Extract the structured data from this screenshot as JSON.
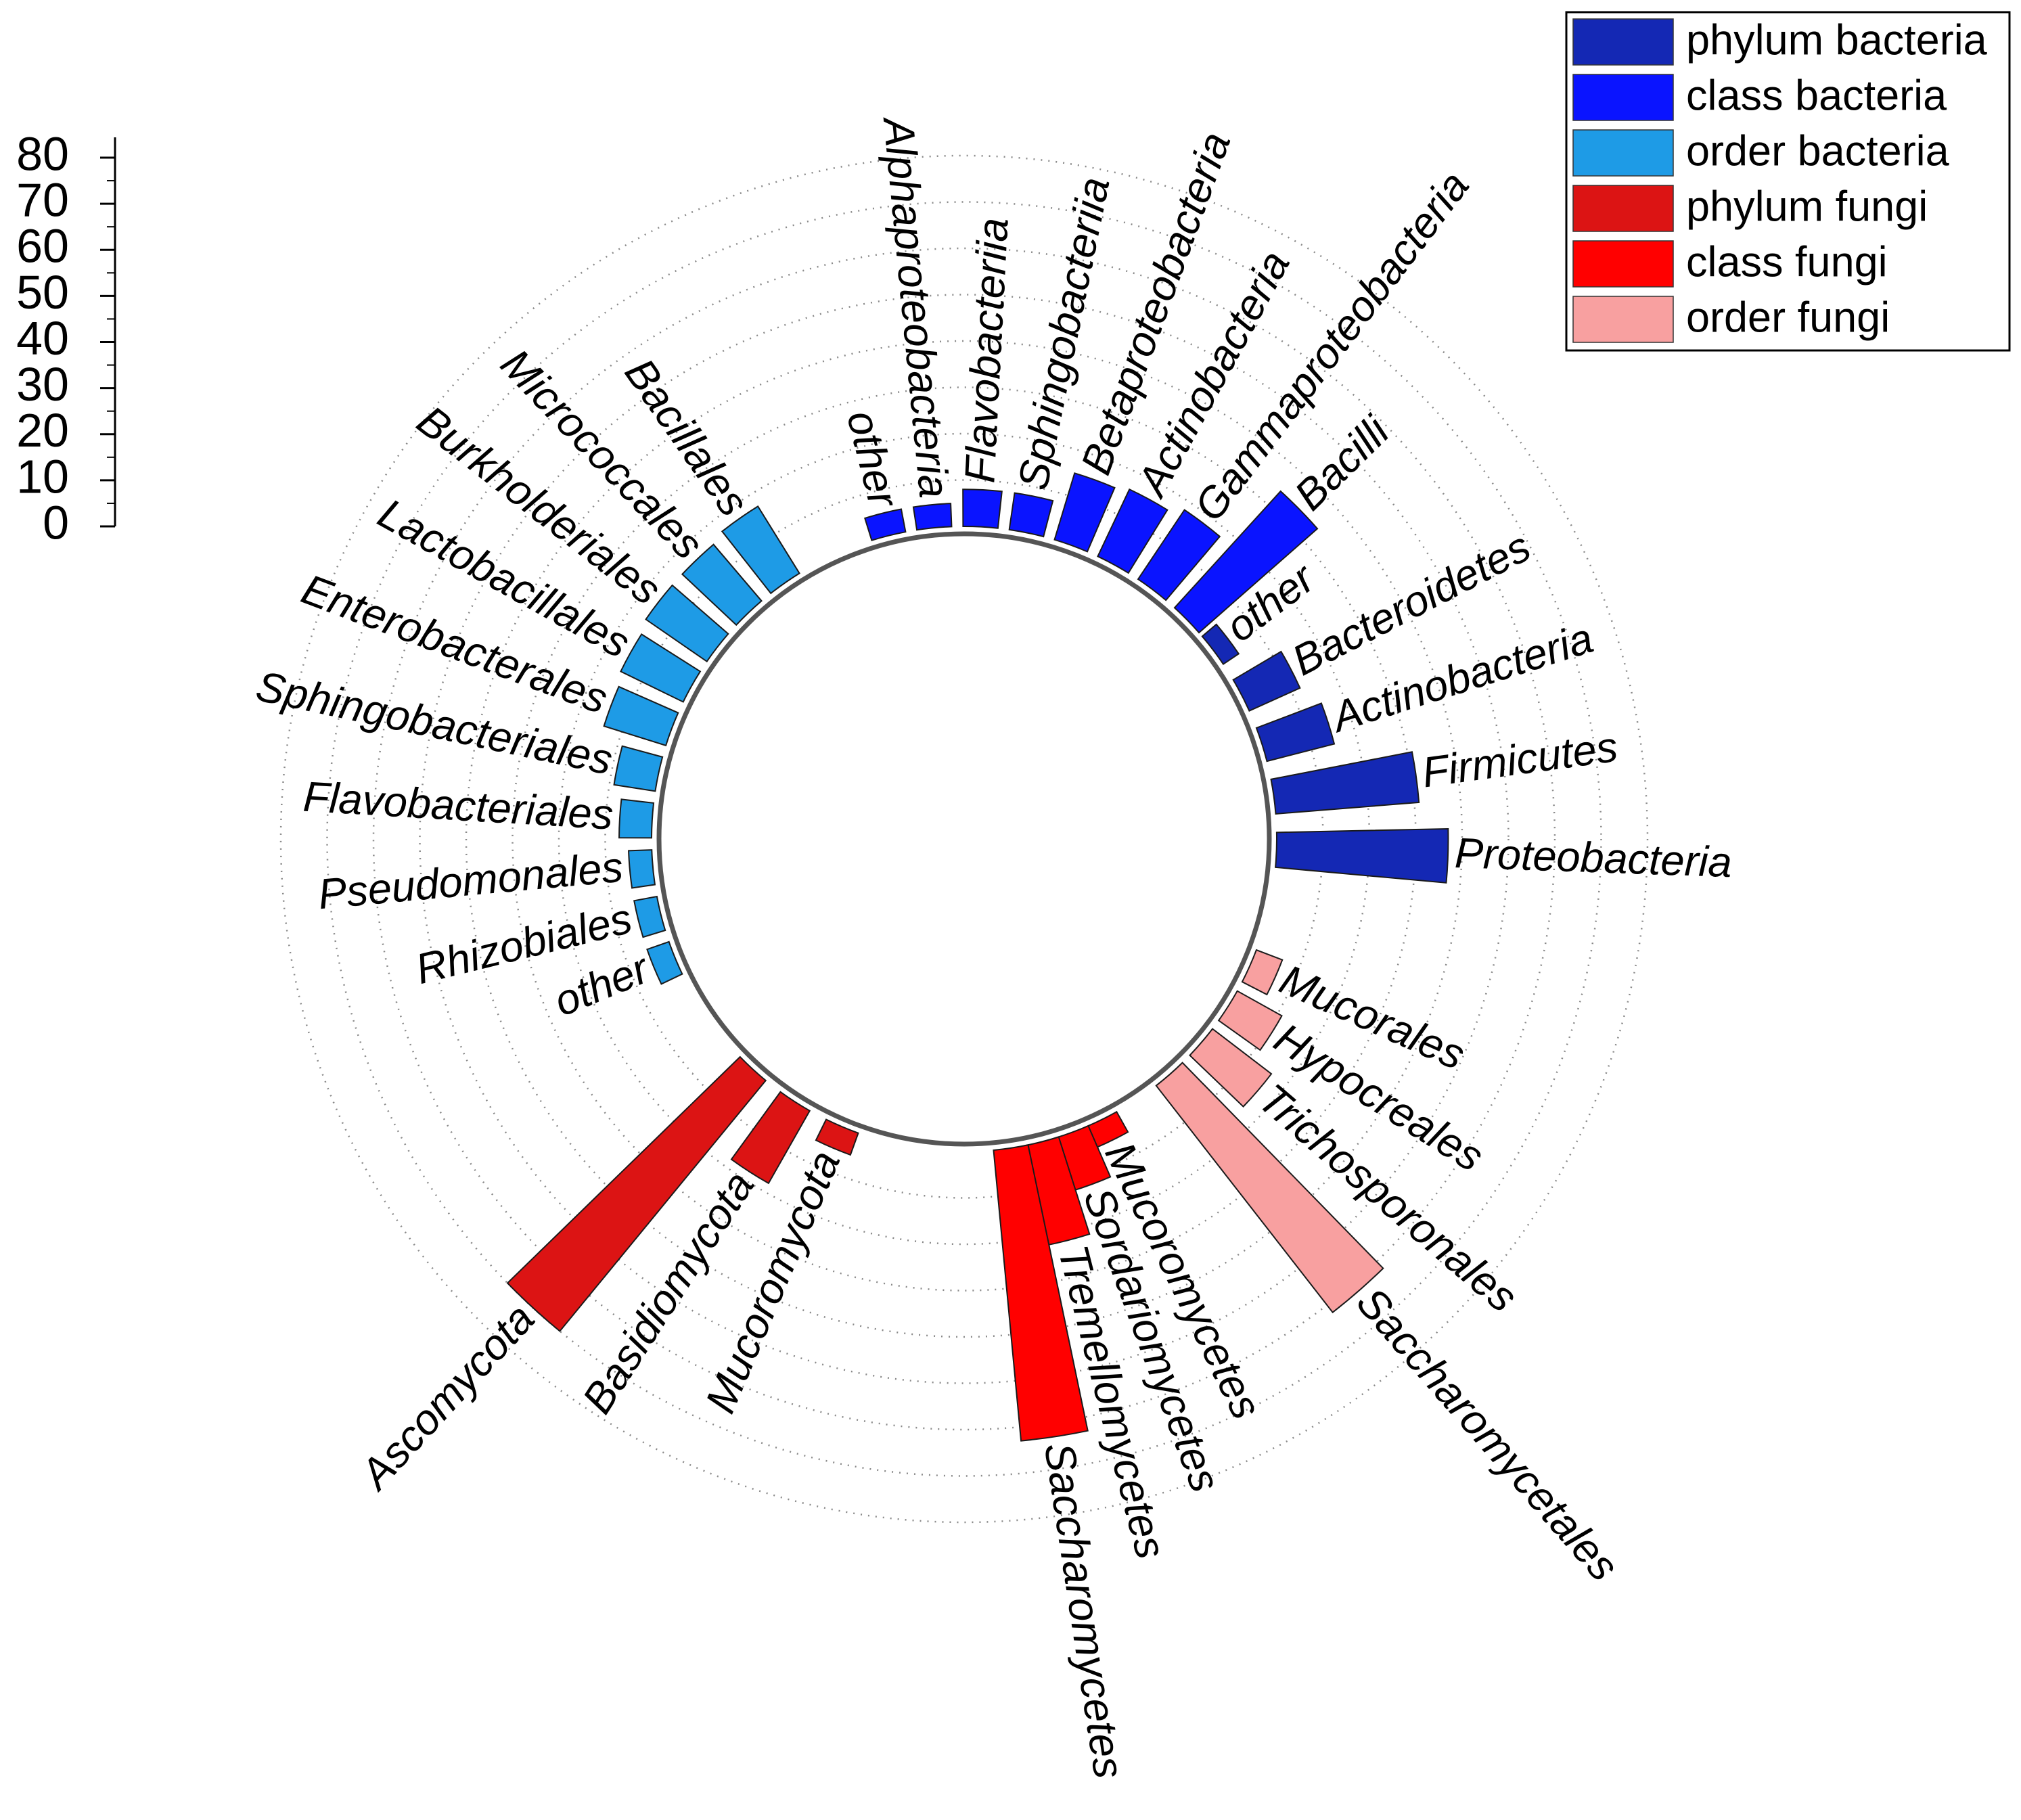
{
  "chart_data": {
    "type": "radial-bar",
    "title": "",
    "radial_axis": {
      "min": 0,
      "max": 80,
      "ticks": [
        "80",
        "70",
        "60",
        "50",
        "40",
        "30",
        "20",
        "10",
        "0"
      ]
    },
    "legend": {
      "position": "top-right",
      "items": [
        {
          "name": "phylum bacteria",
          "color": "#1428b4"
        },
        {
          "name": "class bacteria",
          "color": "#0a14ff"
        },
        {
          "name": "order bacteria",
          "color": "#1e9be6"
        },
        {
          "name": "phylum fungi",
          "color": "#dc1414"
        },
        {
          "name": "class fungi",
          "color": "#ff0000"
        },
        {
          "name": "order fungi",
          "color": "#f8a0a0"
        }
      ]
    },
    "series": [
      {
        "name": "phylum bacteria",
        "color": "#1428b4",
        "categories": [
          "Proteobacteria",
          "Firmicutes",
          "Actinobacteria",
          "Bacteroidetes",
          "other"
        ],
        "values": [
          37,
          31,
          15,
          12,
          4
        ]
      },
      {
        "name": "class bacteria",
        "color": "#0a14ff",
        "categories": [
          "Bacilli",
          "Gammaproteobacteria",
          "Actinobacteria",
          "Betaproteobacteria",
          "Sphingobacteriia",
          "Flavobacteriia",
          "Alphaproteobacteria",
          "other"
        ],
        "values": [
          34,
          18,
          16,
          15,
          8,
          8,
          5,
          5
        ]
      },
      {
        "name": "order bacteria",
        "color": "#1e9be6",
        "categories": [
          "Bacillales",
          "Micrococcales",
          "Burkholderiales",
          "Lactobacillales",
          "Enterobacterales",
          "Sphingobacteriales",
          "Flavobacteriales",
          "Pseudomonales",
          "Rhizobiales",
          "other"
        ],
        "values": [
          17,
          16,
          16,
          15,
          14,
          9,
          7,
          5,
          5,
          5
        ]
      },
      {
        "name": "order fungi",
        "color": "#f8a0a0",
        "categories": [
          "Mucorales",
          "Hypocreales",
          "Trichosporonales",
          "Saccharomycetales"
        ],
        "values": [
          6,
          11,
          16,
          62
        ]
      },
      {
        "name": "class fungi",
        "color": "#ff0000",
        "categories": [
          "Mucoromycetes",
          "Sordariomycetes",
          "Tremellomycetes",
          "Saccharomycetes"
        ],
        "values": [
          5,
          12,
          22,
          63
        ]
      },
      {
        "name": "phylum fungi",
        "color": "#dc1414",
        "categories": [
          "Mucoromycota",
          "Basidiomycota",
          "Ascomycota"
        ],
        "values": [
          5,
          18,
          70
        ]
      }
    ]
  }
}
